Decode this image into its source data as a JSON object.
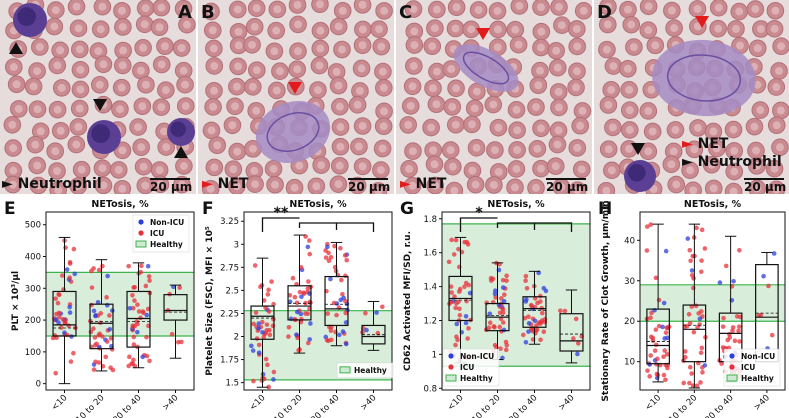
{
  "panels": {
    "A": {
      "letter": "A",
      "scale": "20 µm",
      "legend": [
        "Neutrophil"
      ]
    },
    "B": {
      "letter": "B",
      "scale": "20 µm",
      "legend": [
        "NET"
      ]
    },
    "C": {
      "letter": "C",
      "scale": "20 µm",
      "legend": [
        "NET"
      ]
    },
    "D": {
      "letter": "D",
      "scale": "20 µm",
      "legend": [
        "NET",
        "Neutrophil"
      ]
    }
  },
  "colors": {
    "non_icu": "#2b3fe0",
    "icu": "#e8303a",
    "healthy_fill": "#cfe9d2",
    "healthy_line": "#3cb44b",
    "arrow_red": "#e21b1b",
    "arrow_black": "#111111"
  },
  "chart_data": [
    {
      "id": "E",
      "letter": "E",
      "type": "box",
      "title": "NETosis, %",
      "ylabel": "PLT × 10³/µl",
      "categories": [
        "<10",
        "10 to 20",
        "20 to 40",
        ">40"
      ],
      "ylim": [
        -20,
        540
      ],
      "yticks": [
        0,
        100,
        200,
        300,
        400,
        500
      ],
      "healthy": [
        150,
        350
      ],
      "legend": [
        "Non-ICU",
        "ICU",
        "Healthy"
      ],
      "boxes": [
        {
          "q1": 150,
          "med": 185,
          "q3": 290,
          "lo": 0,
          "hi": 460,
          "mean": 175
        },
        {
          "q1": 110,
          "med": 190,
          "q3": 250,
          "lo": 40,
          "hi": 390,
          "mean": 195
        },
        {
          "q1": 115,
          "med": 205,
          "q3": 290,
          "lo": 50,
          "hi": 380,
          "mean": 195
        },
        {
          "q1": 200,
          "med": 230,
          "q3": 280,
          "lo": 80,
          "hi": 310,
          "mean": 225
        }
      ],
      "significance": []
    },
    {
      "id": "F",
      "letter": "F",
      "type": "box",
      "title": "NETosis, %",
      "ylabel": "Platelet Size (FSC), MFI × 10⁵",
      "categories": [
        "<10",
        "10 to 20",
        "20 to 40",
        ">40"
      ],
      "ylim": [
        1.42,
        3.35
      ],
      "yticks": [
        1.5,
        1.75,
        2.0,
        2.25,
        2.5,
        2.75,
        3.0,
        3.25
      ],
      "healthy": [
        1.53,
        2.28
      ],
      "legend": [
        "Healthy"
      ],
      "boxes": [
        {
          "q1": 1.97,
          "med": 2.22,
          "q3": 2.33,
          "lo": 1.45,
          "hi": 2.85,
          "mean": 2.2
        },
        {
          "q1": 2.18,
          "med": 2.33,
          "q3": 2.55,
          "lo": 1.82,
          "hi": 3.1,
          "mean": 2.36
        },
        {
          "q1": 2.12,
          "med": 2.3,
          "q3": 2.65,
          "lo": 1.9,
          "hi": 3.02,
          "mean": 2.35
        },
        {
          "q1": 1.92,
          "med": 2.0,
          "q3": 2.12,
          "lo": 1.85,
          "hi": 2.38,
          "mean": 2.02
        }
      ],
      "significance": [
        "**"
      ]
    },
    {
      "id": "G",
      "letter": "G",
      "type": "box",
      "title": "NETosis, %",
      "ylabel": "CD62 Activated MFI/SD, r.u.",
      "categories": [
        "<10",
        "10 to 20",
        "20 to 40",
        ">40"
      ],
      "ylim": [
        0.79,
        1.84
      ],
      "yticks": [
        0.8,
        1.0,
        1.2,
        1.4,
        1.6,
        1.8
      ],
      "healthy": [
        0.93,
        1.77
      ],
      "legend": [
        "Non-ICU",
        "ICU",
        "Healthy"
      ],
      "boxes": [
        {
          "q1": 1.2,
          "med": 1.33,
          "q3": 1.46,
          "lo": 0.95,
          "hi": 1.69,
          "mean": 1.32
        },
        {
          "q1": 1.14,
          "med": 1.22,
          "q3": 1.3,
          "lo": 0.97,
          "hi": 1.54,
          "mean": 1.23
        },
        {
          "q1": 1.16,
          "med": 1.27,
          "q3": 1.34,
          "lo": 1.06,
          "hi": 1.49,
          "mean": 1.26
        },
        {
          "q1": 1.02,
          "med": 1.08,
          "q3": 1.24,
          "lo": 0.95,
          "hi": 1.38,
          "mean": 1.12
        }
      ],
      "significance": [
        "*"
      ]
    },
    {
      "id": "H",
      "letter": "H",
      "type": "box",
      "title": "NETosis, %",
      "ylabel": "Stationary Rate of Clot Growth, µm/min",
      "categories": [
        "<10",
        "10 to 20",
        "20 to 40",
        ">40"
      ],
      "ylim": [
        3,
        47
      ],
      "yticks": [
        10,
        20,
        30,
        40
      ],
      "healthy": [
        20,
        29
      ],
      "legend": [
        "Non-ICU",
        "ICU",
        "Healthy"
      ],
      "boxes": [
        {
          "q1": 9.5,
          "med": 14,
          "q3": 23,
          "lo": 5,
          "hi": 44,
          "mean": 15
        },
        {
          "q1": 10,
          "med": 18,
          "q3": 24,
          "lo": 3.5,
          "hi": 44,
          "mean": 19
        },
        {
          "q1": 10,
          "med": 17,
          "q3": 22,
          "lo": 5,
          "hi": 41,
          "mean": 17
        },
        {
          "q1": 10,
          "med": 21,
          "q3": 34,
          "lo": 10,
          "hi": 37,
          "mean": 22
        }
      ],
      "significance": []
    }
  ]
}
